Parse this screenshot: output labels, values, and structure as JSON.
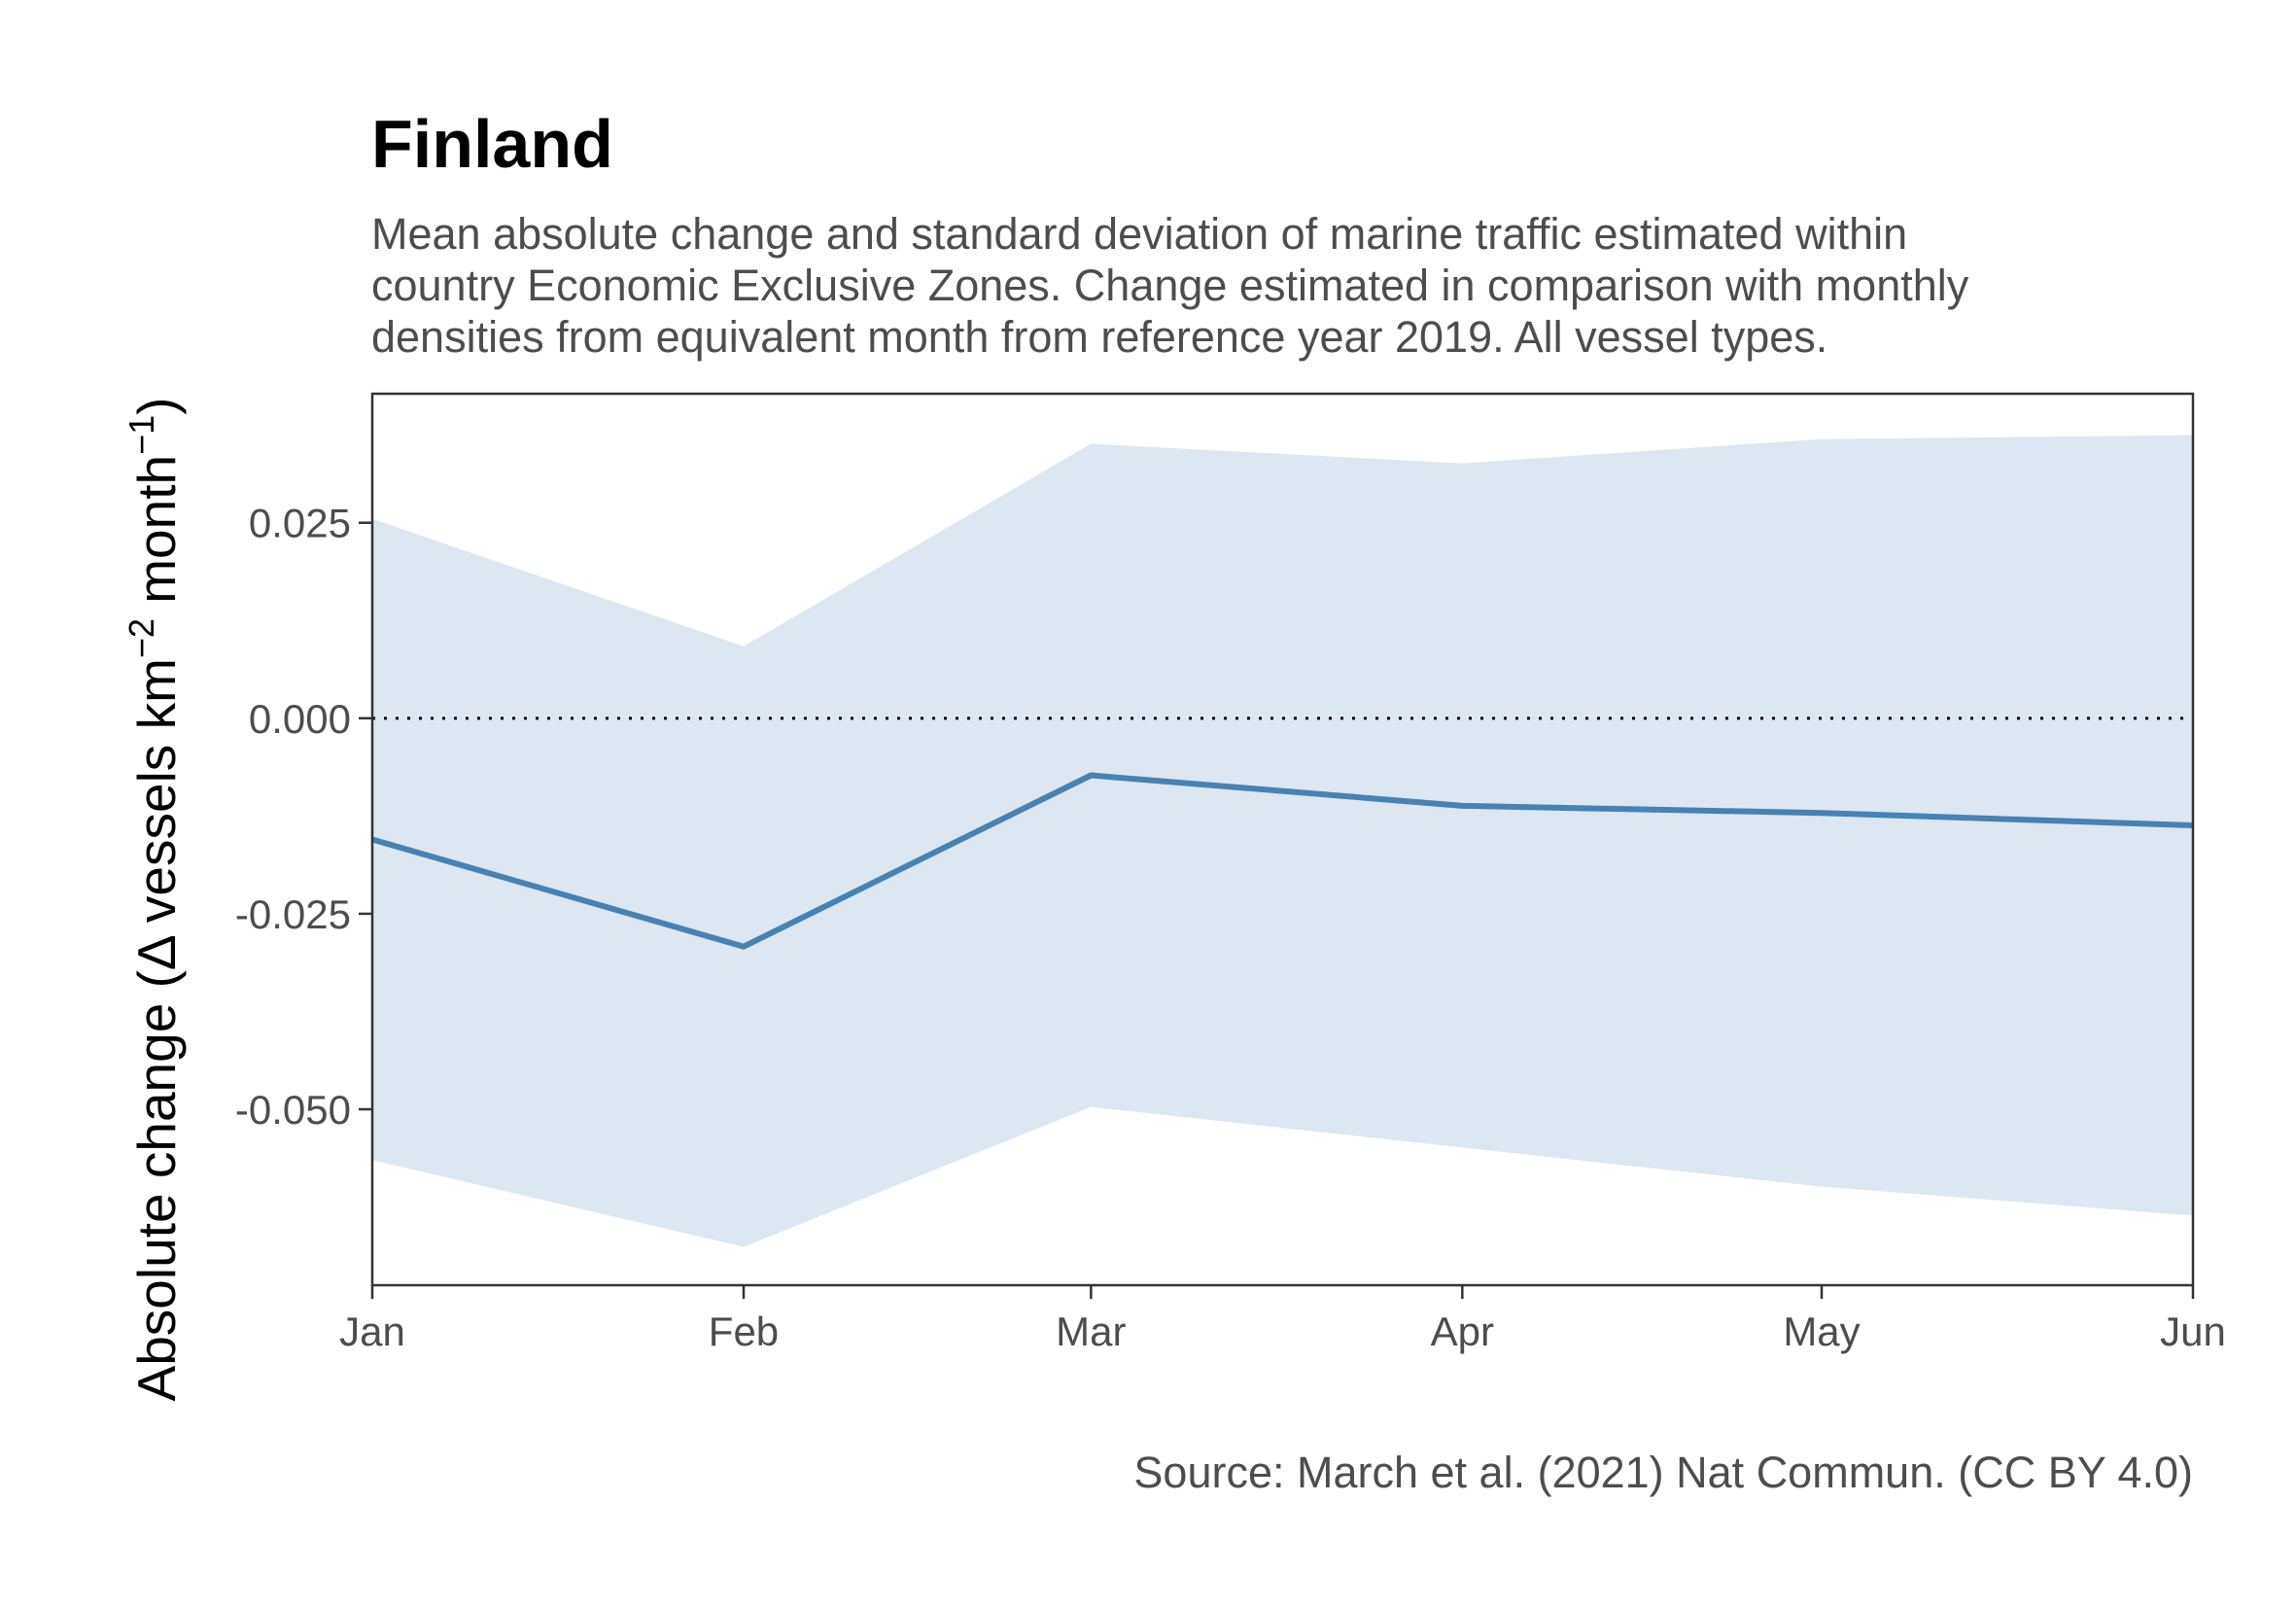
{
  "chart_data": {
    "type": "line",
    "title": "Finland",
    "subtitle": [
      "Mean absolute change and standard deviation of marine traffic estimated within",
      "country Economic Exclusive Zones. Change estimated in comparison with monthly",
      "densities from equivalent month from reference year 2019. All vessel types."
    ],
    "ylabel": {
      "prefix": "Absolute change (",
      "delta": "Δ",
      "mid": " vessels km",
      "exp1": "−2",
      "mid2": " month",
      "exp2": "−1",
      "suffix": ")"
    },
    "caption": "Source: March et al. (2021) Nat Commun. (CC BY 4.0)",
    "x": [
      "2020-01-01",
      "2020-02-01",
      "2020-03-01",
      "2020-04-01",
      "2020-05-01",
      "2020-06-01"
    ],
    "x_tick_labels": [
      "Jan",
      "Feb",
      "Mar",
      "Apr",
      "May",
      "Jun"
    ],
    "mean": [
      -0.0155,
      -0.0292,
      -0.0073,
      -0.0112,
      -0.0121,
      -0.0137
    ],
    "sd_upper": [
      0.0255,
      0.0092,
      0.0351,
      0.0326,
      0.0357,
      0.0362
    ],
    "sd_lower": [
      -0.0565,
      -0.0676,
      -0.0497,
      -0.0549,
      -0.0599,
      -0.0636
    ],
    "ylim": [
      -0.0725,
      0.0415
    ],
    "y_ticks": [
      0.025,
      0.0,
      -0.025,
      -0.05
    ],
    "y_tick_labels": [
      "0.025",
      "0.000",
      "-0.025",
      "-0.050"
    ],
    "reference_line": 0,
    "grid": false,
    "colors": {
      "line": "#4682b4",
      "ribbon": "#dce7f1",
      "reference": "#000000",
      "panel_border": "#333333"
    }
  }
}
